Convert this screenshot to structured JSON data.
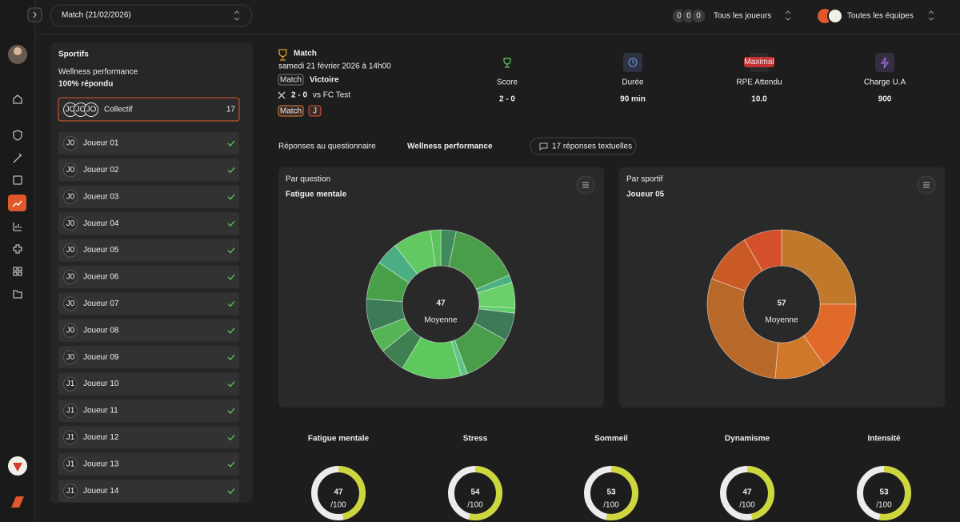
{
  "header": {
    "match_select": "Match (21/02/2026)",
    "player_avatars": [
      "0",
      "0",
      "0"
    ],
    "players_filter": "Tous les joueurs",
    "teams_filter": "Toutes les équipes"
  },
  "sidebar": {
    "title": "Sportifs",
    "questionnaire": "Wellness performance",
    "response_rate": "100% répondu",
    "collective": {
      "avatars": [
        "JO",
        "JO",
        "JO"
      ],
      "label": "Collectif",
      "count": 17
    },
    "players": [
      {
        "initials": "J0",
        "name": "Joueur 01"
      },
      {
        "initials": "J0",
        "name": "Joueur 02"
      },
      {
        "initials": "J0",
        "name": "Joueur 03"
      },
      {
        "initials": "J0",
        "name": "Joueur 04"
      },
      {
        "initials": "J0",
        "name": "Joueur 05"
      },
      {
        "initials": "J0",
        "name": "Joueur 06"
      },
      {
        "initials": "J0",
        "name": "Joueur 07"
      },
      {
        "initials": "J0",
        "name": "Joueur 08"
      },
      {
        "initials": "J0",
        "name": "Joueur 09"
      },
      {
        "initials": "J1",
        "name": "Joueur 10"
      },
      {
        "initials": "J1",
        "name": "Joueur 11"
      },
      {
        "initials": "J1",
        "name": "Joueur 12"
      },
      {
        "initials": "J1",
        "name": "Joueur 13"
      },
      {
        "initials": "J1",
        "name": "Joueur 14"
      }
    ]
  },
  "match": {
    "title": "Match",
    "date": "samedi 21 février 2026 à 14h00",
    "type_badge": "Match",
    "result": "Victoire",
    "score": "2 - 0",
    "opponent": "vs FC Test",
    "tags": [
      "Match",
      "J"
    ]
  },
  "stats": [
    {
      "label": "Score",
      "value": "2 - 0"
    },
    {
      "label": "Durée",
      "value": "90 min"
    },
    {
      "label": "RPE Attendu",
      "value": "10.0",
      "badge": "Maximal"
    },
    {
      "label": "Charge U.A",
      "value": "900"
    }
  ],
  "responses": {
    "prefix": "Réponses au questionnaire",
    "questionnaire": "Wellness performance",
    "text_responses": "17 réponses textuelles"
  },
  "charts": [
    {
      "type": "donut",
      "kicker": "Par question",
      "title": "Fatigue mentale",
      "center_value": 47,
      "center_label": "Moyenne",
      "segments": [
        {
          "value": 12,
          "color": "#3f8a5a"
        },
        {
          "value": 55,
          "color": "#4a9e4a"
        },
        {
          "value": 6,
          "color": "#4db080"
        },
        {
          "value": 20,
          "color": "#6ad06a"
        },
        {
          "value": 4,
          "color": "#5fcc6a"
        },
        {
          "value": 22,
          "color": "#3c7a58"
        },
        {
          "value": 40,
          "color": "#4a9e4a"
        },
        {
          "value": 5,
          "color": "#5ec48a"
        },
        {
          "value": 47,
          "color": "#5dc95d"
        },
        {
          "value": 20,
          "color": "#3e8050"
        },
        {
          "value": 18,
          "color": "#55b455"
        },
        {
          "value": 25,
          "color": "#3d7a58"
        },
        {
          "value": 30,
          "color": "#48a048"
        },
        {
          "value": 18,
          "color": "#4aae82"
        },
        {
          "value": 30,
          "color": "#62c862"
        },
        {
          "value": 8,
          "color": "#5cc25c"
        }
      ]
    },
    {
      "type": "donut",
      "kicker": "Par sportif",
      "title": "Joueur 05",
      "center_value": 57,
      "center_label": "Moyenne",
      "segments": [
        {
          "value": 90,
          "color": "#c0782a"
        },
        {
          "value": 55,
          "color": "#e06a2a"
        },
        {
          "value": 40,
          "color": "#d0782a"
        },
        {
          "value": 105,
          "color": "#b8692a"
        },
        {
          "value": 40,
          "color": "#c95a25"
        },
        {
          "value": 30,
          "color": "#d4502a"
        }
      ]
    }
  ],
  "gauges": {
    "max": 100,
    "max_label": "/100",
    "color": "#cdd63c",
    "items": [
      {
        "label": "Fatigue mentale",
        "value": 47
      },
      {
        "label": "Stress",
        "value": 54
      },
      {
        "label": "Sommeil",
        "value": 53
      },
      {
        "label": "Dynamisme",
        "value": 47
      },
      {
        "label": "Intensité",
        "value": 53
      }
    ]
  }
}
